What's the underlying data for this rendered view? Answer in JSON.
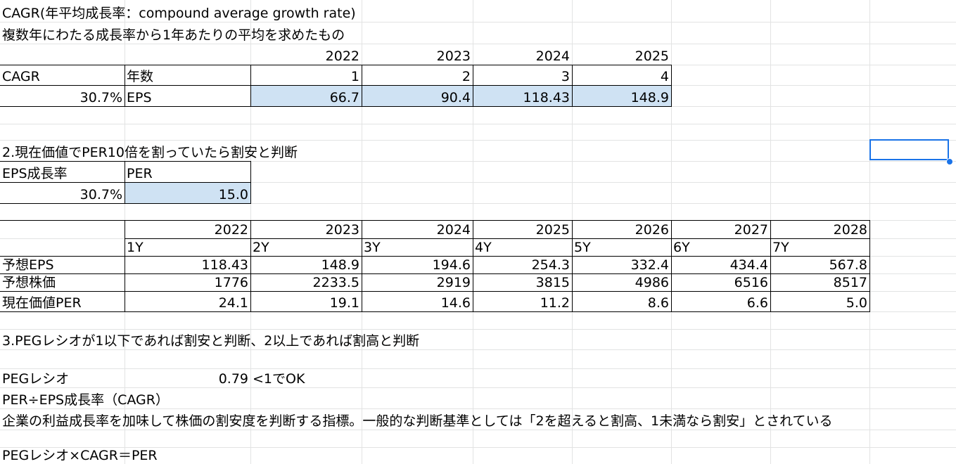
{
  "sheet": {
    "rows": [
      [
        {
          "c": 0,
          "t": "CAGR(年平均成長率：compound average growth rate)",
          "span": 6
        }
      ],
      [
        {
          "c": 0,
          "t": "複数年にわたる成長率から1年あたりの平均を求めたもの",
          "span": 6
        }
      ],
      [
        {
          "c": 2,
          "t": "2022",
          "a": "r"
        },
        {
          "c": 3,
          "t": "2023",
          "a": "r"
        },
        {
          "c": 4,
          "t": "2024",
          "a": "r"
        },
        {
          "c": 5,
          "t": "2025",
          "a": "r"
        }
      ],
      [
        {
          "c": 0,
          "t": "CAGR"
        },
        {
          "c": 1,
          "t": "年数"
        },
        {
          "c": 2,
          "t": "1",
          "a": "r"
        },
        {
          "c": 3,
          "t": "2",
          "a": "r"
        },
        {
          "c": 4,
          "t": "3",
          "a": "r"
        },
        {
          "c": 5,
          "t": "4",
          "a": "r"
        }
      ],
      [
        {
          "c": 0,
          "t": "30.7%",
          "a": "r"
        },
        {
          "c": 1,
          "t": "EPS"
        },
        {
          "c": 2,
          "t": "66.7",
          "a": "r"
        },
        {
          "c": 3,
          "t": "90.4",
          "a": "r"
        },
        {
          "c": 4,
          "t": "118.43",
          "a": "r"
        },
        {
          "c": 5,
          "t": "148.9",
          "a": "r"
        }
      ],
      [],
      [],
      [
        {
          "c": 0,
          "t": "2.現在価値でPER10倍を割っていたら割安と判断",
          "span": 4
        }
      ],
      [
        {
          "c": 0,
          "t": "EPS成長率"
        },
        {
          "c": 1,
          "t": "PER"
        }
      ],
      [
        {
          "c": 0,
          "t": "30.7%",
          "a": "r"
        },
        {
          "c": 1,
          "t": "15.0",
          "a": "r"
        }
      ],
      [],
      [
        {
          "c": 1,
          "t": "2022",
          "a": "r"
        },
        {
          "c": 2,
          "t": "2023",
          "a": "r"
        },
        {
          "c": 3,
          "t": "2024",
          "a": "r"
        },
        {
          "c": 4,
          "t": "2025",
          "a": "r"
        },
        {
          "c": 5,
          "t": "2026",
          "a": "r"
        },
        {
          "c": 6,
          "t": "2027",
          "a": "r"
        },
        {
          "c": 7,
          "t": "2028",
          "a": "r"
        }
      ],
      [
        {
          "c": 1,
          "t": "1Y"
        },
        {
          "c": 2,
          "t": "2Y"
        },
        {
          "c": 3,
          "t": "3Y"
        },
        {
          "c": 4,
          "t": "4Y"
        },
        {
          "c": 5,
          "t": "5Y"
        },
        {
          "c": 6,
          "t": "6Y"
        },
        {
          "c": 7,
          "t": "7Y"
        }
      ],
      [
        {
          "c": 0,
          "t": "予想EPS"
        },
        {
          "c": 1,
          "t": "118.43",
          "a": "r"
        },
        {
          "c": 2,
          "t": "148.9",
          "a": "r"
        },
        {
          "c": 3,
          "t": "194.6",
          "a": "r"
        },
        {
          "c": 4,
          "t": "254.3",
          "a": "r"
        },
        {
          "c": 5,
          "t": "332.4",
          "a": "r"
        },
        {
          "c": 6,
          "t": "434.4",
          "a": "r"
        },
        {
          "c": 7,
          "t": "567.8",
          "a": "r"
        }
      ],
      [
        {
          "c": 0,
          "t": "予想株価"
        },
        {
          "c": 1,
          "t": "1776",
          "a": "r"
        },
        {
          "c": 2,
          "t": "2233.5",
          "a": "r"
        },
        {
          "c": 3,
          "t": "2919",
          "a": "r"
        },
        {
          "c": 4,
          "t": "3815",
          "a": "r"
        },
        {
          "c": 5,
          "t": "4986",
          "a": "r"
        },
        {
          "c": 6,
          "t": "6516",
          "a": "r"
        },
        {
          "c": 7,
          "t": "8517",
          "a": "r"
        }
      ],
      [
        {
          "c": 0,
          "t": "現在価値PER"
        },
        {
          "c": 1,
          "t": "24.1",
          "a": "r"
        },
        {
          "c": 2,
          "t": "19.1",
          "a": "r"
        },
        {
          "c": 3,
          "t": "14.6",
          "a": "r"
        },
        {
          "c": 4,
          "t": "11.2",
          "a": "r"
        },
        {
          "c": 5,
          "t": "8.6",
          "a": "r"
        },
        {
          "c": 6,
          "t": "6.6",
          "a": "r"
        },
        {
          "c": 7,
          "t": "5.0",
          "a": "r"
        }
      ],
      [],
      [
        {
          "c": 0,
          "t": "3.PEGレシオが1以下であれば割安と判断、2以上であれば割高と判断",
          "span": 6
        }
      ],
      [],
      [
        {
          "c": 0,
          "t": "PEGレシオ"
        },
        {
          "c": 1,
          "t": "0.79",
          "a": "r"
        },
        {
          "c": 2,
          "t": "<1でOK"
        }
      ],
      [
        {
          "c": 0,
          "t": "PER÷EPS成長率（CAGR）",
          "span": 3
        }
      ],
      [
        {
          "c": 0,
          "t": "企業の利益成長率を加味して株価の割安度を判断する指標。一般的な判断基準としては「2を超えると割高、1未満なら割安」とされている",
          "span": 9
        }
      ],
      [],
      [
        {
          "c": 0,
          "t": "PEGレシオ×CAGR＝PER",
          "span": 3
        }
      ]
    ],
    "selected_cell": "empty cell, column I, row of '2.現在価値でPER10倍を割っていたら割安と判断'",
    "colors": {
      "grid": "#e2e3e3",
      "highlight": "#cfe2f3",
      "selection": "#1a73e8"
    }
  }
}
